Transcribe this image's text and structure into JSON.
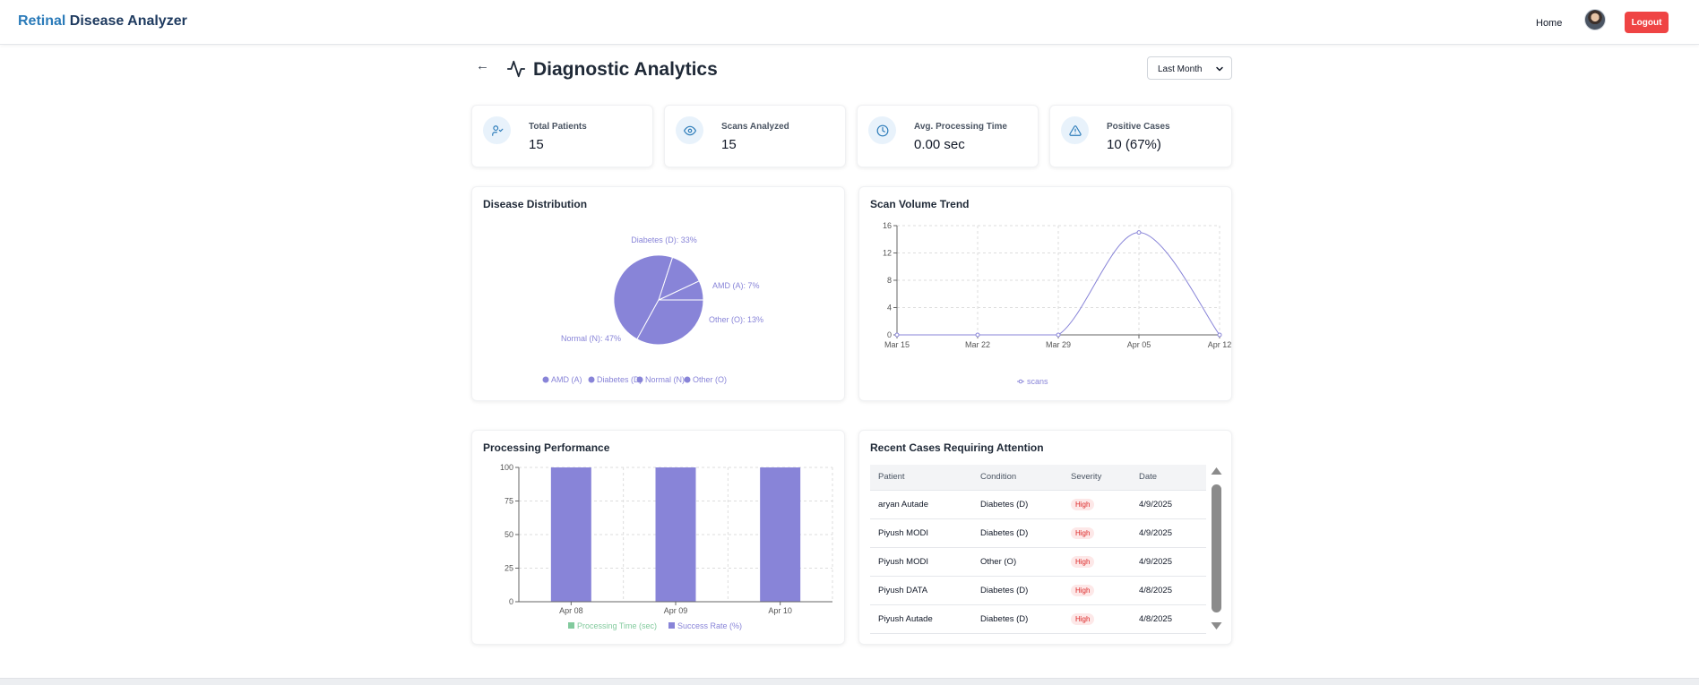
{
  "nav": {
    "brand_part1": "Retinal",
    "brand_part2": " Disease Analyzer",
    "home": "Home",
    "logout": "Logout"
  },
  "header": {
    "title": "Diagnostic Analytics",
    "back_icon": "arrow-left-icon",
    "title_icon": "activity-icon",
    "range_selected": "Last Month"
  },
  "stats": [
    {
      "label": "Total Patients",
      "value": "15",
      "icon": "users-icon"
    },
    {
      "label": "Scans Analyzed",
      "value": "15",
      "icon": "eye-icon"
    },
    {
      "label": "Avg. Processing Time",
      "value": "0.00 sec",
      "icon": "clock-icon"
    },
    {
      "label": "Positive Cases",
      "value": "10 (67%)",
      "icon": "alert-triangle-icon"
    }
  ],
  "cards": {
    "disease": "Disease Distribution",
    "trend": "Scan Volume Trend",
    "performance": "Processing Performance",
    "recent": "Recent Cases Requiring Attention"
  },
  "colors": {
    "accent": "#8884d8",
    "green": "#82ca9d",
    "danger": "#ef4444",
    "brand": "#2b7bb9"
  },
  "chart_data": [
    {
      "type": "pie",
      "title": "Disease Distribution",
      "slices": [
        {
          "label": "AMD (A)",
          "value": 7,
          "text": "AMD (A): 7%"
        },
        {
          "label": "Other (O)",
          "value": 13,
          "text": "Other (O): 13%"
        },
        {
          "label": "Normal (N)",
          "value": 47,
          "text": "Normal (N): 47%"
        },
        {
          "label": "Diabetes (D)",
          "value": 33,
          "text": "Diabetes (D): 33%"
        }
      ],
      "legend": [
        "AMD (A)",
        "Diabetes (D)",
        "Normal (N)",
        "Other (O)"
      ]
    },
    {
      "type": "line",
      "title": "Scan Volume Trend",
      "x": [
        "Mar 15",
        "Mar 22",
        "Mar 29",
        "Apr 05",
        "Apr 12"
      ],
      "series": [
        {
          "name": "scans",
          "values": [
            0,
            0,
            0,
            15,
            0
          ]
        }
      ],
      "ylim": [
        0,
        16
      ],
      "yticks": [
        0,
        4,
        8,
        12,
        16
      ],
      "legend": [
        "scans"
      ]
    },
    {
      "type": "bar",
      "title": "Processing Performance",
      "categories": [
        "Apr 08",
        "Apr 09",
        "Apr 10"
      ],
      "series": [
        {
          "name": "Processing Time (sec)",
          "values": [
            0,
            0,
            0
          ]
        },
        {
          "name": "Success Rate (%)",
          "values": [
            100,
            100,
            100
          ]
        }
      ],
      "ylim": [
        0,
        100
      ],
      "yticks": [
        0,
        25,
        50,
        75,
        100
      ]
    }
  ],
  "recent_cases": {
    "headers": [
      "Patient",
      "Condition",
      "Severity",
      "Date"
    ],
    "rows": [
      {
        "patient": "aryan Autade",
        "condition": "Diabetes (D)",
        "severity": "High",
        "date": "4/9/2025"
      },
      {
        "patient": "Piyush MODI",
        "condition": "Diabetes (D)",
        "severity": "High",
        "date": "4/9/2025"
      },
      {
        "patient": "Piyush MODI",
        "condition": "Other (O)",
        "severity": "High",
        "date": "4/9/2025"
      },
      {
        "patient": "Piyush DATA",
        "condition": "Diabetes (D)",
        "severity": "High",
        "date": "4/8/2025"
      },
      {
        "patient": "Piyush Autade",
        "condition": "Diabetes (D)",
        "severity": "High",
        "date": "4/8/2025"
      }
    ]
  }
}
